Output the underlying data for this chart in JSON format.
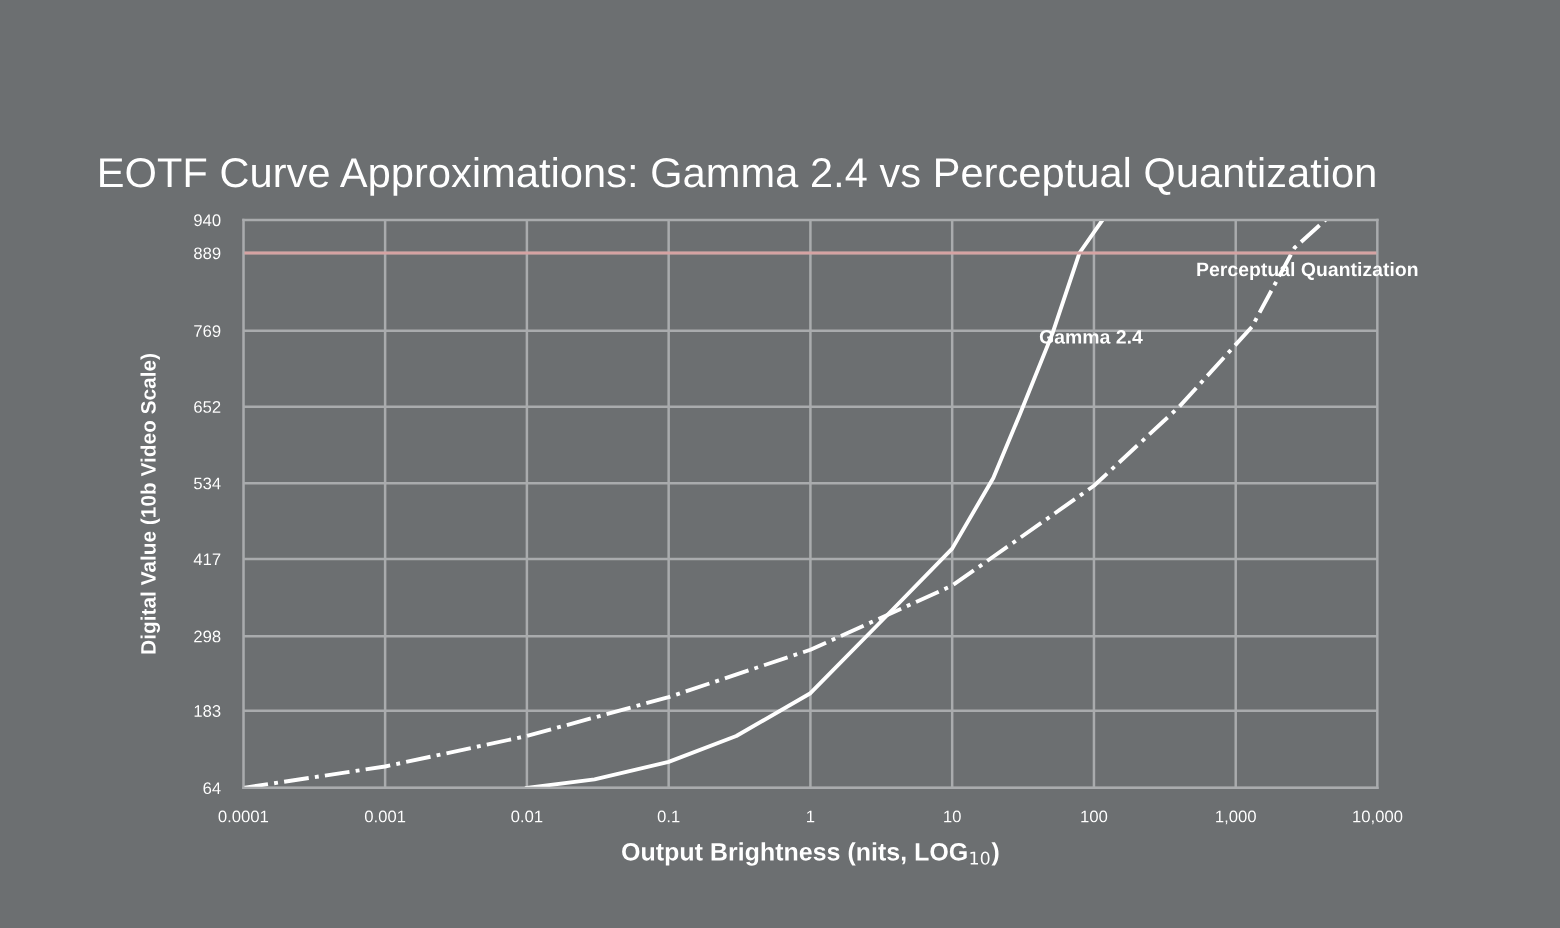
{
  "chart_data": {
    "type": "line",
    "title": "EOTF Curve Approximations: Gamma 2.4 vs Perceptual Quantization",
    "xlabel": "Output Brightness (nits, LOG$_{10}$)",
    "ylabel": "Digital Value (10b Video Scale)",
    "log": "x",
    "xlim": [
      0.0001,
      10000
    ],
    "xticks": [
      {
        "value": 0.0001,
        "label": "0.0001"
      },
      {
        "value": 0.001,
        "label": "0.001"
      },
      {
        "value": 0.01,
        "label": "0.01"
      },
      {
        "value": 0.1,
        "label": "0.1"
      },
      {
        "value": 1,
        "label": "1"
      },
      {
        "value": 10,
        "label": "10"
      },
      {
        "value": 100,
        "label": "100"
      },
      {
        "value": 1000,
        "label": "1,000"
      },
      {
        "value": 10000,
        "label": "10,000"
      }
    ],
    "ylim": [
      64,
      940
    ],
    "yticks": [
      64,
      183,
      298,
      417,
      534,
      652,
      769,
      889,
      940
    ],
    "grid": true,
    "legend": false,
    "series": [
      {
        "color": "#ffffff",
        "line_style": "solid",
        "x": [
          0.01,
          0.03,
          0.1,
          0.3,
          1,
          3,
          10,
          19.5,
          30,
          51,
          79,
          115
        ],
        "values": [
          64,
          77,
          104,
          144,
          210,
          316,
          433,
          542,
          640,
          765,
          889,
          940
        ]
      },
      {
        "color": "#ffffff",
        "line_style": "dashed",
        "x": [
          0.0001,
          0.001,
          0.01,
          0.1,
          1,
          10,
          100,
          400,
          1300,
          2600,
          4300
        ],
        "values": [
          64,
          97,
          144,
          204,
          277,
          376,
          530,
          652,
          775,
          897,
          940
        ]
      }
    ],
    "ref_lines": [
      {
        "axis": "y",
        "value": 889,
        "color": "#d6a3a3"
      }
    ],
    "annotations": [
      {
        "text": "Gamma 2.4",
        "x": 41,
        "y": 757
      },
      "Perceptual Quantization"
    ]
  }
}
